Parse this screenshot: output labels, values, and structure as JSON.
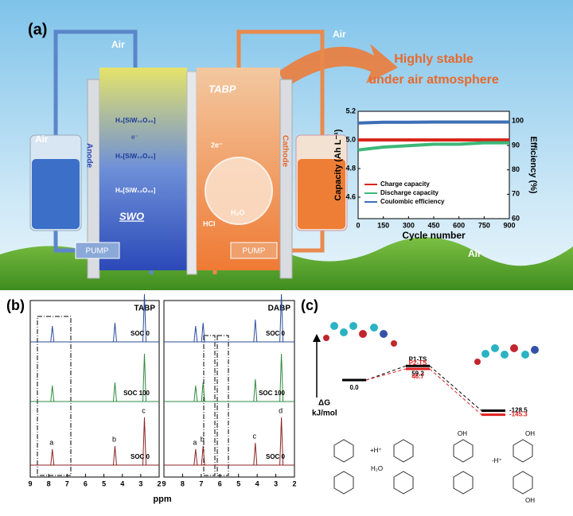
{
  "panel_a": {
    "label": "(a)",
    "headline": [
      "Highly stable",
      "under air atmosphere"
    ],
    "air": [
      "Air",
      "Air",
      "Air",
      "Air"
    ],
    "anode": "Anode",
    "cathode": "Cathode",
    "tabp": "TABP",
    "swo": "SWO",
    "pumps": [
      "PUMP",
      "PUMP"
    ],
    "species": [
      "H₄[SiW₁₂O₄₀]",
      "H₅[SiW₁₂O₄₀]",
      "H₆[SiW₁₂O₄₀]"
    ],
    "electron": "e⁻",
    "two_electron": "2e⁻",
    "hcl": "HCl",
    "h2o": "H₂O",
    "inset": {
      "type": "line",
      "xlabel": "Cycle number",
      "ylabel": "Capacity (Ah L⁻¹)",
      "y2label": "Efficiency (%)",
      "xlim": [
        0,
        900
      ],
      "xticks": [
        0,
        150,
        300,
        450,
        600,
        750,
        900
      ],
      "ylim": [
        4.45,
        5.2
      ],
      "yticks": [
        4.6,
        4.8,
        {
          "value": 5,
          "label": "5.0"
        },
        5.2
      ],
      "y2lim": [
        60,
        104
      ],
      "y2ticks": [
        60,
        70,
        80,
        90,
        100
      ],
      "x": [
        0,
        150,
        300,
        450,
        600,
        750,
        900
      ],
      "series": [
        {
          "name": "Charge capacity",
          "color": "#d9261c",
          "values": [
            5.0,
            5.0,
            5.0,
            5.0,
            5.0,
            5.0,
            5.0
          ]
        },
        {
          "name": "Discharge capacity",
          "color": "#3cb878",
          "values": [
            4.93,
            4.95,
            4.96,
            4.97,
            4.97,
            4.98,
            4.98
          ]
        },
        {
          "name": "Coulombic efficiency",
          "color": "#3d6fb6",
          "axis": "y2",
          "values": [
            99.2,
            99.5,
            99.5,
            99.6,
            99.6,
            99.6,
            99.6
          ]
        }
      ]
    }
  },
  "panel_b": {
    "label": "(b)",
    "xlabel": "ppm",
    "xlim": [
      9,
      2
    ],
    "xticks": [
      9,
      8,
      7,
      6,
      5,
      4,
      3,
      2
    ],
    "spectra": [
      {
        "title": "TABP",
        "traces": [
          "SOC 0",
          "SOC 100",
          "SOC 0"
        ],
        "peaks": [
          7.8,
          4.4,
          2.8
        ],
        "peak_labels": [
          "a",
          "b",
          "c"
        ]
      },
      {
        "title": "DABP",
        "traces": [
          "SOC 0",
          "SOC 100",
          "SOC 0"
        ],
        "peaks": [
          7.3,
          6.9,
          4.1,
          2.7
        ],
        "peak_labels": [
          "a",
          "b",
          "c",
          "d"
        ]
      }
    ]
  },
  "panel_c": {
    "label": "(c)",
    "axis_label": [
      "ΔG",
      "kJ/mol"
    ],
    "names": [
      null,
      "P1-TS",
      "P2-TS",
      null,
      null
    ],
    "values": [
      0,
      59.2,
      46.7,
      -128.5,
      -145.3
    ],
    "value_labels": [
      "0.0",
      "59.2",
      "46.7",
      "-128.5",
      "-145.3"
    ],
    "scheme": [
      "+H⁺",
      "H₂O",
      "-H⁺",
      "OH",
      "OH",
      "OH"
    ]
  }
}
